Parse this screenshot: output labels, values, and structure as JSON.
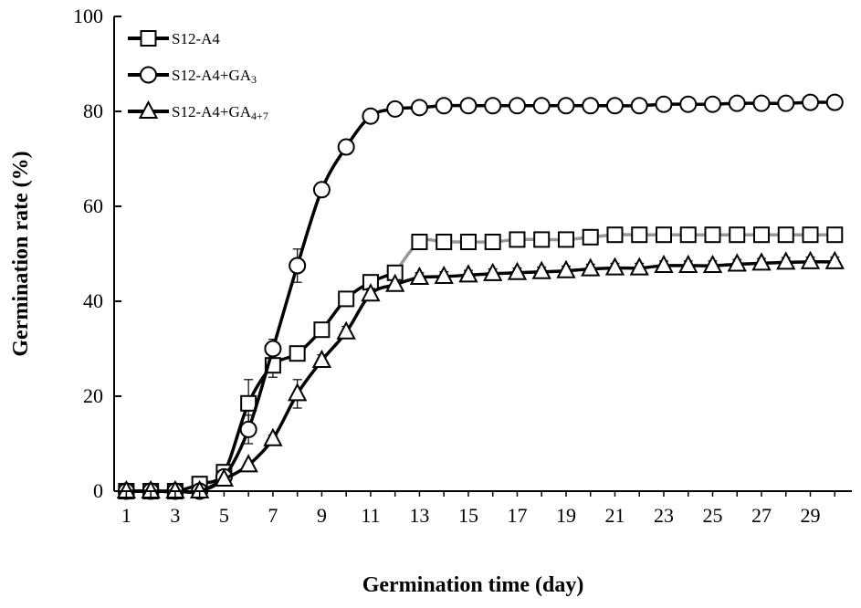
{
  "chart_data": {
    "type": "line",
    "title": "",
    "xlabel": "Germination time (day)",
    "ylabel": "Germination rate (%)",
    "xlim": [
      0.5,
      30.7
    ],
    "ylim": [
      0,
      100
    ],
    "yticks": [
      0,
      20,
      40,
      60,
      80,
      100
    ],
    "xticks": [
      1,
      3,
      5,
      7,
      9,
      11,
      13,
      15,
      17,
      19,
      21,
      23,
      25,
      27,
      29
    ],
    "grid": false,
    "legend_position": "top-left",
    "x": [
      1,
      2,
      3,
      4,
      5,
      6,
      7,
      8,
      9,
      10,
      11,
      12,
      13,
      14,
      15,
      16,
      17,
      18,
      19,
      20,
      21,
      22,
      23,
      24,
      25,
      26,
      27,
      28,
      29,
      30
    ],
    "series": [
      {
        "name": "S12-A4",
        "marker": "square",
        "line_color": "#000000",
        "tail_line_color": "#999999",
        "values": [
          0,
          0,
          0,
          1.5,
          4,
          18.5,
          26.5,
          29,
          34,
          40.5,
          44,
          46,
          52.5,
          52.5,
          52.5,
          52.5,
          53,
          53,
          53,
          53.5,
          54,
          54,
          54,
          54,
          54,
          54,
          54,
          54,
          54,
          54
        ],
        "errors": [
          0,
          0,
          0,
          0.5,
          0.8,
          5,
          2.5,
          1.5,
          1.5,
          1.2,
          1,
          1,
          1,
          0.8,
          0.8,
          0.8,
          0.8,
          0.8,
          0.8,
          0.8,
          0.8,
          0.8,
          0.8,
          0.8,
          0.8,
          0.8,
          0.8,
          0.8,
          0.8,
          0.8
        ]
      },
      {
        "name": "S12-A4+GA",
        "name_sub": "3",
        "marker": "circle",
        "line_color": "#000000",
        "values": [
          0,
          0,
          0,
          0,
          3,
          13,
          30,
          47.5,
          63.5,
          72.5,
          79,
          80.5,
          80.8,
          81.2,
          81.2,
          81.2,
          81.2,
          81.2,
          81.2,
          81.2,
          81.2,
          81.2,
          81.5,
          81.5,
          81.5,
          81.7,
          81.7,
          81.7,
          81.9,
          81.9
        ],
        "errors": [
          0,
          0,
          0,
          0,
          0.5,
          3,
          2,
          3.5,
          1.5,
          1.5,
          1,
          0.8,
          0.8,
          0.8,
          0.8,
          0.8,
          0.8,
          0.8,
          0.8,
          0.8,
          0.8,
          0.8,
          0.8,
          0.8,
          0.8,
          0.8,
          0.8,
          0.8,
          0.8,
          0.8
        ]
      },
      {
        "name": "S12-A4+GA",
        "name_sub": "4+7",
        "marker": "triangle",
        "line_color": "#000000",
        "values": [
          0,
          0,
          0,
          0,
          2.5,
          5.5,
          11,
          20.5,
          27.5,
          33.5,
          41.5,
          43.5,
          45,
          45.2,
          45.5,
          45.8,
          46,
          46.2,
          46.4,
          46.8,
          47,
          47,
          47.5,
          47.5,
          47.5,
          47.8,
          48,
          48.2,
          48.3,
          48.3
        ],
        "errors": [
          0,
          0,
          0,
          0,
          0.5,
          0.5,
          0.8,
          3,
          1.2,
          1.2,
          1.2,
          1,
          1,
          1,
          1,
          1,
          1,
          1,
          1,
          1,
          1,
          1,
          1,
          1,
          1,
          1,
          1,
          1,
          1,
          1
        ]
      }
    ]
  }
}
